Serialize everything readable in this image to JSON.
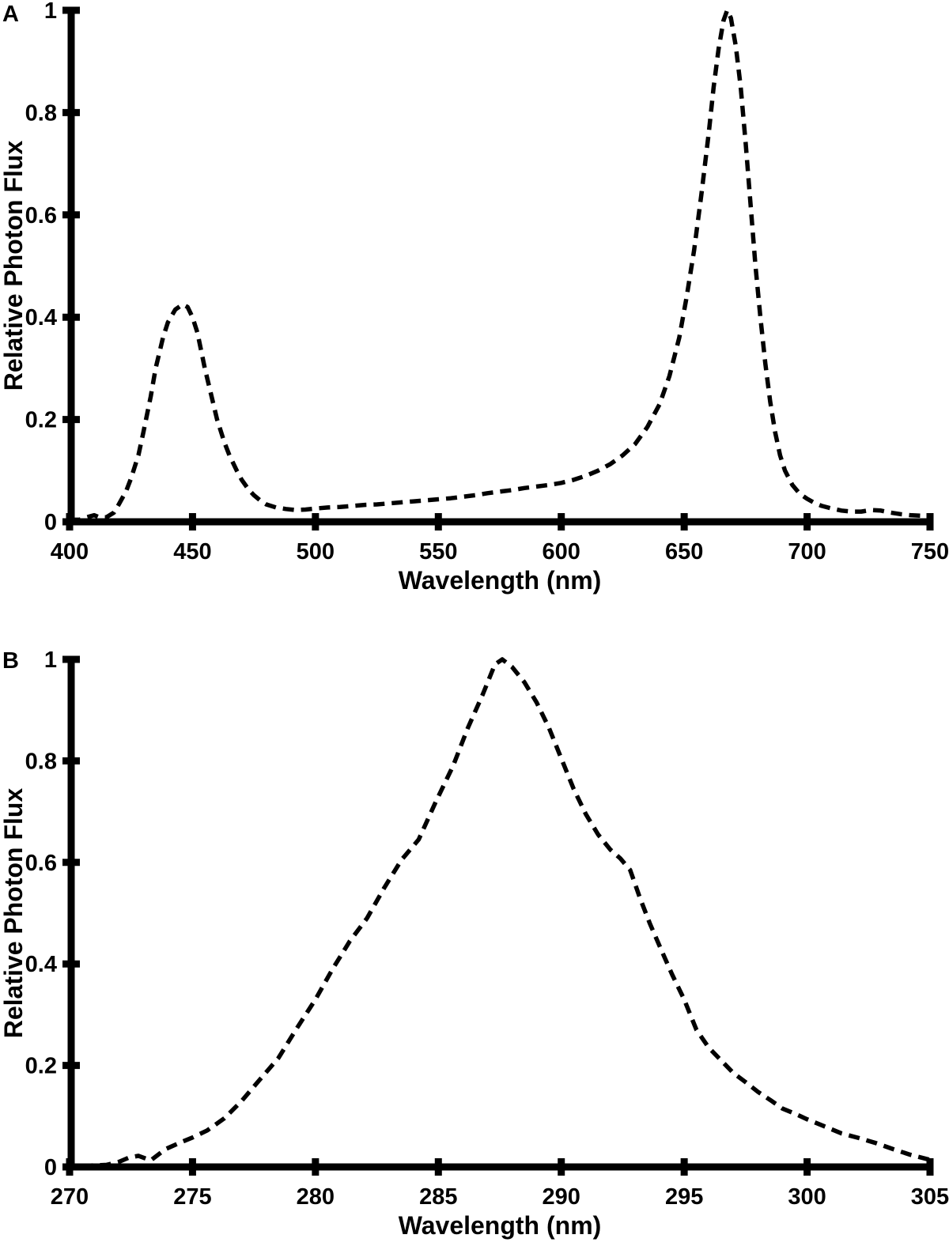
{
  "figure": {
    "background": "#ffffff",
    "ink_color": "#000000"
  },
  "chart_data": [
    {
      "type": "line",
      "panel_label": "A",
      "title": "",
      "xlabel": "Wavelength (nm)",
      "ylabel": "Relative Photon Flux",
      "xlim": [
        400,
        750
      ],
      "ylim": [
        0,
        1
      ],
      "x_ticks": [
        400,
        450,
        500,
        550,
        600,
        650,
        700,
        750
      ],
      "y_ticks": [
        0,
        0.2,
        0.4,
        0.6,
        0.8,
        1
      ],
      "grid": false,
      "legend": "none",
      "line_style": "dashed",
      "color": "#000000",
      "series": [
        {
          "x": [
            400,
            404,
            407,
            410,
            412,
            415,
            418,
            420,
            423,
            425,
            428,
            430,
            433,
            435,
            438,
            440,
            443,
            446,
            448,
            450,
            452,
            455,
            458,
            460,
            463,
            465,
            468,
            470,
            473,
            475,
            478,
            480,
            484,
            488,
            492,
            496,
            500,
            505,
            510,
            515,
            520,
            525,
            530,
            535,
            540,
            545,
            550,
            555,
            560,
            565,
            570,
            575,
            580,
            585,
            590,
            595,
            600,
            605,
            610,
            615,
            620,
            625,
            630,
            635,
            640,
            644,
            648,
            651,
            654,
            657,
            660,
            662,
            664,
            666,
            667.5,
            669,
            671,
            673,
            675,
            677,
            679,
            681,
            683,
            685,
            687,
            689,
            691,
            694,
            697,
            700,
            703,
            706,
            710,
            714,
            718,
            722,
            726,
            730,
            734,
            738,
            742,
            746,
            750
          ],
          "y": [
            0.004,
            0.004,
            0.009,
            0.013,
            0.009,
            0.009,
            0.018,
            0.034,
            0.06,
            0.085,
            0.13,
            0.175,
            0.245,
            0.3,
            0.36,
            0.39,
            0.415,
            0.425,
            0.42,
            0.4,
            0.37,
            0.3,
            0.24,
            0.2,
            0.155,
            0.13,
            0.1,
            0.082,
            0.062,
            0.052,
            0.04,
            0.034,
            0.028,
            0.025,
            0.023,
            0.024,
            0.026,
            0.028,
            0.029,
            0.031,
            0.033,
            0.034,
            0.036,
            0.038,
            0.04,
            0.042,
            0.044,
            0.046,
            0.049,
            0.052,
            0.056,
            0.059,
            0.062,
            0.066,
            0.069,
            0.072,
            0.076,
            0.082,
            0.09,
            0.1,
            0.113,
            0.13,
            0.152,
            0.185,
            0.23,
            0.285,
            0.36,
            0.44,
            0.53,
            0.64,
            0.76,
            0.85,
            0.925,
            0.98,
            1.0,
            0.985,
            0.93,
            0.85,
            0.74,
            0.62,
            0.5,
            0.4,
            0.31,
            0.235,
            0.175,
            0.13,
            0.1,
            0.072,
            0.055,
            0.045,
            0.037,
            0.031,
            0.026,
            0.022,
            0.02,
            0.02,
            0.023,
            0.022,
            0.018,
            0.015,
            0.013,
            0.012,
            0.011
          ]
        }
      ]
    },
    {
      "type": "line",
      "panel_label": "B",
      "title": "",
      "xlabel": "Wavelength (nm)",
      "ylabel": "Relative Photon Flux",
      "xlim": [
        270,
        305
      ],
      "ylim": [
        0,
        1
      ],
      "x_ticks": [
        270,
        275,
        280,
        285,
        290,
        295,
        300,
        305
      ],
      "y_ticks": [
        0,
        0.2,
        0.4,
        0.6,
        0.8,
        1
      ],
      "grid": false,
      "legend": "none",
      "line_style": "dashed",
      "color": "#000000",
      "series": [
        {
          "x": [
            270.5,
            271.5,
            272,
            272.4,
            272.8,
            273.3,
            273.9,
            274.5,
            275,
            275.6,
            276.3,
            277,
            277.7,
            278.5,
            279.2,
            280,
            280.7,
            281.4,
            282.1,
            282.8,
            283.5,
            284.2,
            284.9,
            285.6,
            286.2,
            286.8,
            287.3,
            287.6,
            288,
            288.5,
            289,
            289.5,
            290,
            290.5,
            291,
            291.5,
            292,
            292.4,
            292.8,
            293.2,
            293.6,
            294,
            294.5,
            295,
            295.5,
            296,
            296.5,
            297,
            297.5,
            298,
            298.5,
            299,
            299.5,
            300,
            300.7,
            301.4,
            302.1,
            302.8,
            303.5,
            304.2,
            305
          ],
          "y": [
            0.002,
            0.004,
            0.01,
            0.018,
            0.022,
            0.013,
            0.035,
            0.048,
            0.058,
            0.072,
            0.096,
            0.13,
            0.17,
            0.215,
            0.27,
            0.33,
            0.39,
            0.445,
            0.49,
            0.55,
            0.605,
            0.645,
            0.72,
            0.79,
            0.865,
            0.93,
            0.99,
            1.0,
            0.985,
            0.955,
            0.915,
            0.865,
            0.805,
            0.745,
            0.695,
            0.655,
            0.625,
            0.608,
            0.585,
            0.53,
            0.48,
            0.435,
            0.38,
            0.33,
            0.27,
            0.235,
            0.21,
            0.185,
            0.167,
            0.148,
            0.132,
            0.115,
            0.105,
            0.094,
            0.08,
            0.066,
            0.057,
            0.047,
            0.035,
            0.024,
            0.014
          ]
        }
      ]
    }
  ]
}
